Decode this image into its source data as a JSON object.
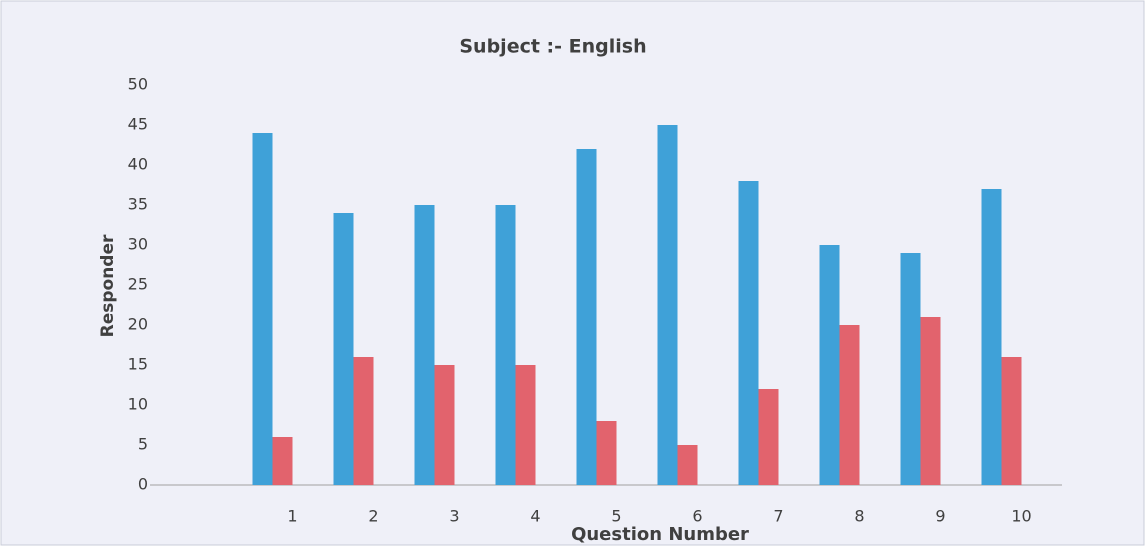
{
  "chart_data": {
    "type": "bar",
    "title": "Subject :- English",
    "xlabel": "Question Number",
    "ylabel": "Responder",
    "categories": [
      "1",
      "2",
      "3",
      "4",
      "5",
      "6",
      "7",
      "8",
      "9",
      "10"
    ],
    "series": [
      {
        "color": "#3fa1d8",
        "values": [
          44,
          34,
          35,
          35,
          42,
          45,
          38,
          30,
          29,
          37
        ]
      },
      {
        "color": "#e2636d",
        "values": [
          6,
          16,
          15,
          15,
          8,
          5,
          12,
          20,
          21,
          16
        ]
      }
    ],
    "ylim": [
      0,
      50
    ],
    "yticks": [
      0,
      5,
      10,
      15,
      20,
      25,
      30,
      35,
      40,
      45,
      50
    ],
    "grid": false
  }
}
